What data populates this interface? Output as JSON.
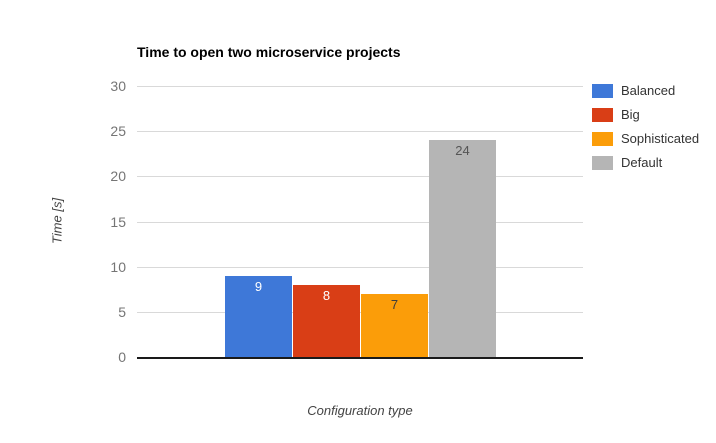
{
  "chart_data": {
    "type": "bar",
    "title": "Time to open two microservice projects",
    "xlabel": "Configuration type",
    "ylabel": "Time [s]",
    "ylim": [
      0,
      30
    ],
    "yticks": [
      0,
      5,
      10,
      15,
      20,
      25,
      30
    ],
    "grid": true,
    "legend_position": "right",
    "value_labels_shown": true,
    "series": [
      {
        "name": "Balanced",
        "value": 9,
        "color": "#3e78d8",
        "label_color": "#ffffff"
      },
      {
        "name": "Big",
        "value": 8,
        "color": "#d93e16",
        "label_color": "#ffffff"
      },
      {
        "name": "Sophisticated",
        "value": 7,
        "color": "#fb9d09",
        "label_color": "#3d3d3d"
      },
      {
        "name": "Default",
        "value": 24,
        "color": "#b5b5b5",
        "label_color": "#555555"
      }
    ]
  }
}
